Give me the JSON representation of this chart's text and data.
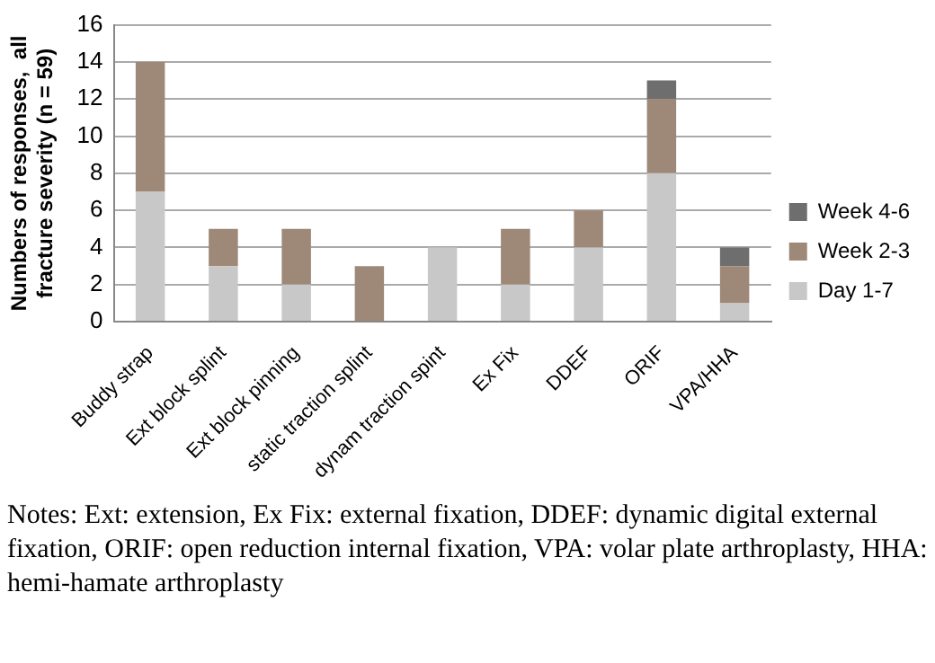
{
  "chart_data": {
    "type": "bar",
    "stacked": true,
    "ylabel": "Numbers of responses,  all fracture severity (n = 59)",
    "categories": [
      "Buddy strap",
      "Ext block splint",
      "Ext block pinning",
      "static traction splint",
      "dynam traction spint",
      "Ex Fix",
      "DDEF",
      "ORIF",
      "VPA/HHA"
    ],
    "series": [
      {
        "name": "Day 1-7",
        "color": "#c8c8c8",
        "values": [
          7,
          3,
          2,
          0,
          4,
          2,
          4,
          8,
          1
        ]
      },
      {
        "name": "Week 2-3",
        "color": "#9e8878",
        "values": [
          7,
          2,
          3,
          3,
          0,
          3,
          2,
          4,
          2
        ]
      },
      {
        "name": "Week 4-6",
        "color": "#6e6e6e",
        "values": [
          0,
          0,
          0,
          0,
          0,
          0,
          0,
          1,
          1
        ]
      }
    ],
    "ylim": [
      0,
      16
    ],
    "yticks": [
      0,
      2,
      4,
      6,
      8,
      10,
      12,
      14,
      16
    ],
    "grid": "y",
    "legend": "right",
    "annotations": [
      "Notes: Ext: extension, Ex Fix: external fixation, DDEF: dynamic digital external fixation, ORIF: open reduction internal fixation, VPA: volar plate arthroplasty, HHA: hemi-hamate arthroplasty"
    ]
  }
}
